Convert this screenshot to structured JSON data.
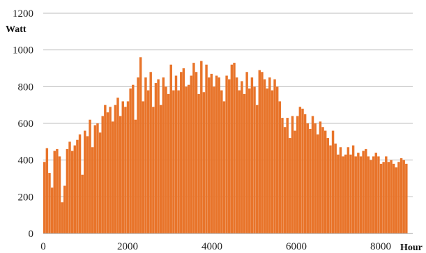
{
  "chart_data": {
    "type": "bar",
    "title": "",
    "xlabel": "Hour",
    "ylabel": "Watt",
    "xlim": [
      0,
      8760
    ],
    "ylim": [
      0,
      1200
    ],
    "x_ticks": [
      0,
      2000,
      4000,
      6000,
      8000
    ],
    "y_ticks": [
      0,
      200,
      400,
      600,
      800,
      1000,
      1200
    ],
    "x_tick_labels": [
      "0",
      "2000",
      "4000",
      "6000",
      "8000"
    ],
    "y_tick_labels": [
      "0",
      "200",
      "400",
      "600",
      "800",
      "1000",
      "1200"
    ],
    "grid": "horizontal",
    "legend": "none",
    "bar_color": "#e8742a",
    "series": [
      {
        "x_start": 0,
        "x_step": 60,
        "values": [
          390,
          465,
          330,
          250,
          450,
          460,
          420,
          170,
          260,
          460,
          500,
          450,
          480,
          510,
          540,
          320,
          560,
          530,
          620,
          470,
          590,
          600,
          550,
          640,
          700,
          660,
          690,
          610,
          700,
          740,
          640,
          720,
          690,
          720,
          790,
          810,
          620,
          850,
          960,
          720,
          850,
          780,
          880,
          690,
          820,
          840,
          700,
          850,
          800,
          760,
          920,
          780,
          860,
          780,
          880,
          900,
          800,
          810,
          860,
          930,
          880,
          760,
          940,
          770,
          920,
          850,
          870,
          800,
          860,
          850,
          780,
          720,
          860,
          840,
          920,
          930,
          850,
          780,
          830,
          760,
          880,
          790,
          850,
          800,
          700,
          890,
          880,
          840,
          790,
          850,
          780,
          840,
          800,
          720,
          630,
          580,
          630,
          520,
          640,
          560,
          640,
          690,
          680,
          650,
          600,
          570,
          640,
          600,
          540,
          610,
          580,
          560,
          520,
          480,
          560,
          490,
          430,
          470,
          420,
          430,
          470,
          430,
          480,
          420,
          440,
          420,
          450,
          460,
          420,
          400,
          420,
          440,
          420,
          380,
          390,
          420,
          390,
          400,
          380,
          360,
          390,
          410,
          400,
          380
        ]
      }
    ]
  }
}
